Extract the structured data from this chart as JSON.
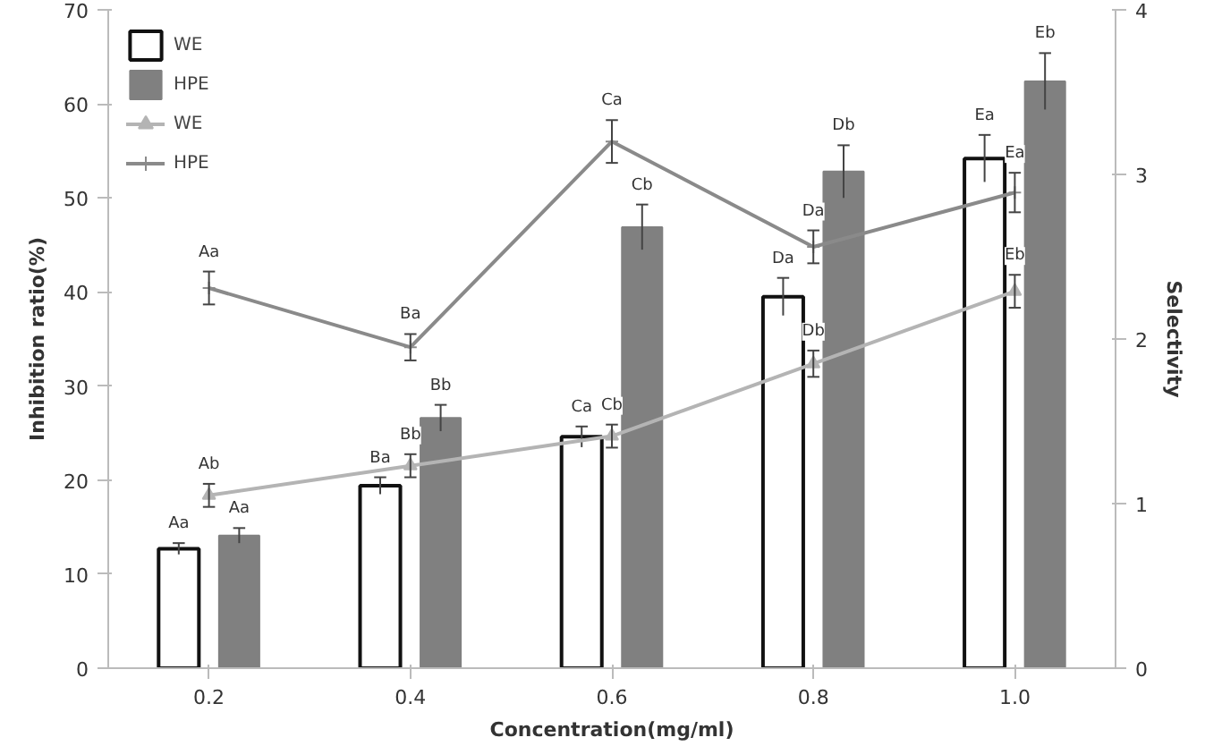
{
  "chart_data": {
    "type": "bar",
    "xlabel": "Concentration(mg/ml)",
    "ylabel": "Inhibition ratio(%)",
    "y2label": "Selectivity",
    "categories": [
      "0.2",
      "0.4",
      "0.6",
      "0.8",
      "1.0"
    ],
    "series": [
      {
        "name": "WE",
        "color": "#ffffff",
        "values": [
          12.7,
          19.4,
          24.6,
          39.5,
          54.2
        ],
        "errors": [
          0.6,
          0.9,
          1.1,
          2.0,
          2.5
        ],
        "value_labels": [
          "Aa",
          "Ba",
          "Ca",
          "Da",
          "Ea"
        ]
      },
      {
        "name": "HPE",
        "color": "#808080",
        "values": [
          14.1,
          26.6,
          46.9,
          52.8,
          62.4
        ],
        "errors": [
          0.8,
          1.4,
          2.4,
          2.8,
          3.0
        ],
        "value_labels": [
          "Aa",
          "Bb",
          "Cb",
          "Db",
          "Eb"
        ]
      },
      {
        "name": "WE",
        "type": "line",
        "axis": "y2",
        "marker": "triangle",
        "color": "#b4b4b4",
        "values": [
          1.05,
          1.23,
          1.41,
          1.85,
          2.29
        ],
        "errors": [
          0.07,
          0.07,
          0.07,
          0.08,
          0.1
        ],
        "value_labels": [
          "Ab",
          "Bb",
          "Cb",
          "Db",
          "Eb"
        ]
      },
      {
        "name": "HPE",
        "type": "line",
        "axis": "y2",
        "marker": "cross",
        "color": "#8a8a8a",
        "values": [
          2.31,
          1.95,
          3.2,
          2.56,
          2.89
        ],
        "errors": [
          0.1,
          0.08,
          0.13,
          0.1,
          0.12
        ],
        "value_labels": [
          "Aa",
          "Ba",
          "Ca",
          "Da",
          "Ea"
        ]
      }
    ],
    "ylim": [
      0,
      70
    ],
    "yticks": [
      0,
      10,
      20,
      30,
      40,
      50,
      60,
      70
    ],
    "y2lim": [
      0,
      4
    ],
    "y2ticks": [
      0,
      1,
      2,
      3,
      4
    ],
    "grid": false,
    "legend": "top left"
  }
}
